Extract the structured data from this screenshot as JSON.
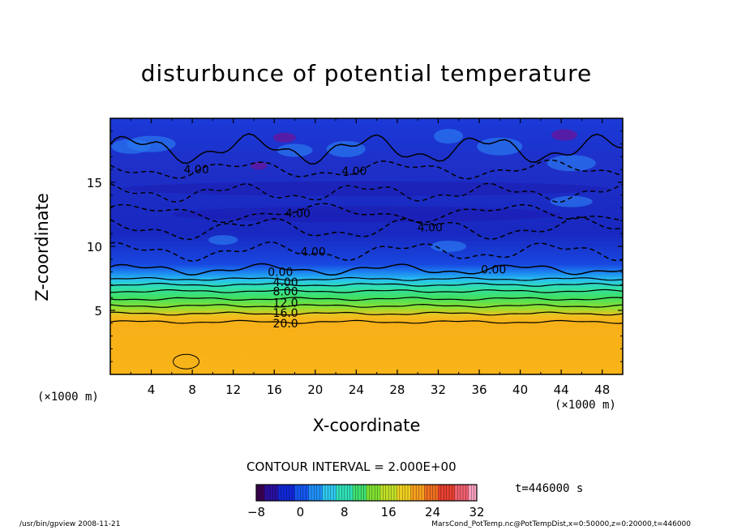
{
  "chart_data": {
    "type": "heatmap",
    "title": "disturbunce of potential temperature",
    "xlabel": "X-coordinate",
    "ylabel": "Z-coordinate",
    "x_unit_left": "(×1000 m)",
    "x_unit_right": "(×1000 m)",
    "xlim": [
      0,
      50
    ],
    "ylim": [
      0,
      20
    ],
    "x_ticks": [
      "4",
      "8",
      "12",
      "16",
      "20",
      "24",
      "28",
      "32",
      "36",
      "40",
      "44",
      "48"
    ],
    "y_ticks": [
      "5",
      "10",
      "15"
    ],
    "contour_interval_text": "CONTOUR INTERVAL = 2.000E+00",
    "time_text": "t=446000  s",
    "colorbar": {
      "min": -8,
      "max": 32,
      "tick_labels": [
        "−8",
        "0",
        "8",
        "16",
        "24",
        "32"
      ],
      "colors": [
        "#3a0050",
        "#2a10a0",
        "#1028d8",
        "#1458f0",
        "#2090f8",
        "#30c8f0",
        "#30e0b8",
        "#40e070",
        "#80e030",
        "#c0e028",
        "#f0d020",
        "#f8a020",
        "#f07020",
        "#e84030",
        "#f06070",
        "#f8a0c0"
      ]
    },
    "contour_labels": [
      {
        "text": "4.00",
        "x": 8.4,
        "z": 16.0
      },
      {
        "text": "4.00",
        "x": 23.8,
        "z": 15.9
      },
      {
        "text": "4.00",
        "x": 18.3,
        "z": 12.6
      },
      {
        "text": "4.00",
        "x": 31.2,
        "z": 11.5
      },
      {
        "text": "4.00",
        "x": 19.8,
        "z": 9.6
      },
      {
        "text": "0.00",
        "x": 16.6,
        "z": 8.0
      },
      {
        "text": "0.00",
        "x": 37.4,
        "z": 8.2
      },
      {
        "text": "4.00",
        "x": 17.1,
        "z": 7.2
      },
      {
        "text": "8.00",
        "x": 17.1,
        "z": 6.5
      },
      {
        "text": "12.0",
        "x": 17.1,
        "z": 5.6
      },
      {
        "text": "16.0",
        "x": 17.1,
        "z": 4.8
      },
      {
        "text": "20.0",
        "x": 17.1,
        "z": 4.0
      }
    ]
  },
  "footer": {
    "left": "/usr/bin/gpview   2008-11-21",
    "right": "MarsCond_PotTemp.nc@PotTempDist,x=0:50000,z=0:20000,t=446000"
  }
}
